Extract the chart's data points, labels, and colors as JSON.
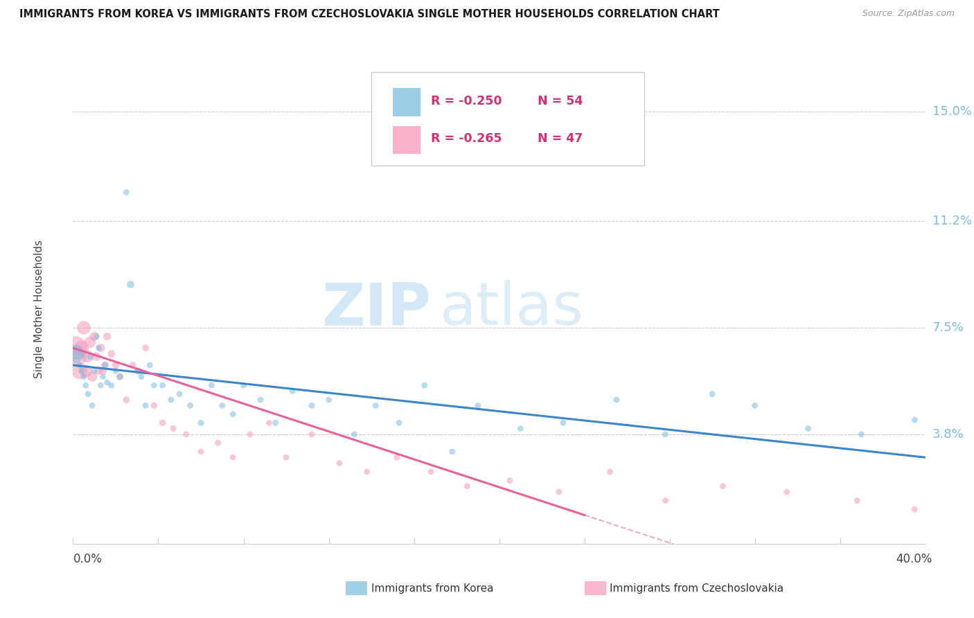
{
  "title": "IMMIGRANTS FROM KOREA VS IMMIGRANTS FROM CZECHOSLOVAKIA SINGLE MOTHER HOUSEHOLDS CORRELATION CHART",
  "source": "Source: ZipAtlas.com",
  "ylabel": "Single Mother Households",
  "xlim": [
    0.0,
    0.4
  ],
  "ylim": [
    0.0,
    0.163
  ],
  "ytick_labels": [
    "3.8%",
    "7.5%",
    "11.2%",
    "15.0%"
  ],
  "ytick_values": [
    0.038,
    0.075,
    0.112,
    0.15
  ],
  "watermark_zip": "ZIP",
  "watermark_atlas": "atlas",
  "legend_korea_r": "R = -0.250",
  "legend_korea_n": "N = 54",
  "legend_czech_r": "R = -0.265",
  "legend_czech_n": "N = 47",
  "korea_color": "#7abde0",
  "czech_color": "#f799b8",
  "trendline_korea_color": "#3a86c8",
  "trendline_czech_color": "#e8609a",
  "background_color": "#ffffff",
  "korea_x": [
    0.001,
    0.003,
    0.004,
    0.005,
    0.006,
    0.007,
    0.008,
    0.009,
    0.01,
    0.011,
    0.012,
    0.013,
    0.014,
    0.015,
    0.016,
    0.018,
    0.02,
    0.022,
    0.025,
    0.027,
    0.03,
    0.032,
    0.034,
    0.036,
    0.038,
    0.042,
    0.046,
    0.05,
    0.055,
    0.06,
    0.065,
    0.07,
    0.075,
    0.08,
    0.088,
    0.095,
    0.103,
    0.112,
    0.12,
    0.132,
    0.142,
    0.153,
    0.165,
    0.178,
    0.19,
    0.21,
    0.23,
    0.255,
    0.278,
    0.3,
    0.32,
    0.345,
    0.37,
    0.395
  ],
  "korea_y": [
    0.066,
    0.062,
    0.06,
    0.058,
    0.055,
    0.052,
    0.065,
    0.048,
    0.06,
    0.072,
    0.068,
    0.055,
    0.058,
    0.062,
    0.056,
    0.055,
    0.06,
    0.058,
    0.122,
    0.09,
    0.06,
    0.058,
    0.048,
    0.062,
    0.055,
    0.055,
    0.05,
    0.052,
    0.048,
    0.042,
    0.055,
    0.048,
    0.045,
    0.055,
    0.05,
    0.042,
    0.053,
    0.048,
    0.05,
    0.038,
    0.048,
    0.042,
    0.055,
    0.032,
    0.048,
    0.04,
    0.042,
    0.05,
    0.038,
    0.052,
    0.048,
    0.04,
    0.038,
    0.043
  ],
  "korea_sizes": [
    350,
    40,
    40,
    40,
    40,
    40,
    40,
    40,
    40,
    40,
    40,
    40,
    40,
    40,
    40,
    40,
    40,
    40,
    40,
    60,
    40,
    40,
    40,
    40,
    40,
    40,
    40,
    40,
    40,
    40,
    40,
    40,
    40,
    40,
    40,
    40,
    40,
    40,
    40,
    40,
    40,
    40,
    40,
    40,
    40,
    40,
    40,
    40,
    40,
    40,
    40,
    40,
    40,
    40
  ],
  "czech_x": [
    0.001,
    0.002,
    0.003,
    0.004,
    0.005,
    0.006,
    0.007,
    0.008,
    0.009,
    0.01,
    0.011,
    0.012,
    0.013,
    0.014,
    0.015,
    0.016,
    0.018,
    0.02,
    0.022,
    0.025,
    0.028,
    0.031,
    0.034,
    0.038,
    0.042,
    0.047,
    0.053,
    0.06,
    0.068,
    0.075,
    0.083,
    0.092,
    0.1,
    0.112,
    0.125,
    0.138,
    0.152,
    0.168,
    0.185,
    0.205,
    0.228,
    0.252,
    0.278,
    0.305,
    0.335,
    0.368,
    0.395
  ],
  "czech_y": [
    0.068,
    0.065,
    0.06,
    0.068,
    0.075,
    0.06,
    0.065,
    0.07,
    0.058,
    0.072,
    0.065,
    0.06,
    0.068,
    0.06,
    0.062,
    0.072,
    0.066,
    0.062,
    0.058,
    0.05,
    0.062,
    0.06,
    0.068,
    0.048,
    0.042,
    0.04,
    0.038,
    0.032,
    0.035,
    0.03,
    0.038,
    0.042,
    0.03,
    0.038,
    0.028,
    0.025,
    0.03,
    0.025,
    0.02,
    0.022,
    0.018,
    0.025,
    0.015,
    0.02,
    0.018,
    0.015,
    0.012
  ],
  "czech_sizes": [
    600,
    400,
    280,
    230,
    200,
    170,
    150,
    140,
    110,
    90,
    80,
    75,
    75,
    65,
    65,
    65,
    60,
    60,
    55,
    50,
    50,
    50,
    50,
    45,
    45,
    45,
    40,
    40,
    40,
    40,
    40,
    40,
    40,
    40,
    40,
    40,
    40,
    40,
    40,
    40,
    40,
    40,
    40,
    40,
    40,
    40,
    40
  ]
}
